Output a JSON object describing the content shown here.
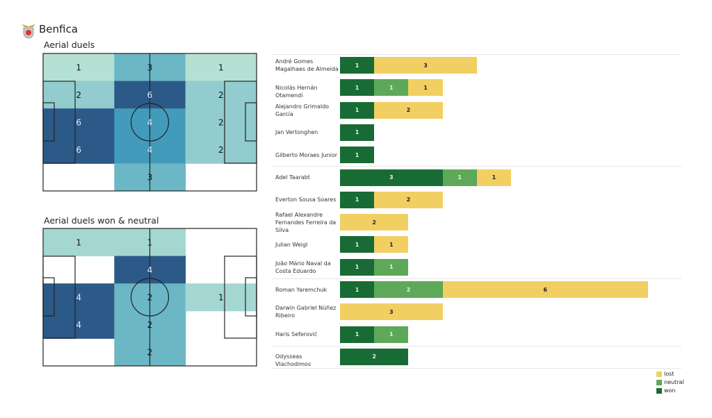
{
  "team": "Benfica",
  "chart_data": [
    {
      "type": "heatmap",
      "title": "Aerial duels",
      "grid": [
        [
          1,
          3,
          1
        ],
        [
          2,
          6,
          2
        ],
        [
          6,
          4,
          2
        ],
        [
          6,
          4,
          2
        ],
        [
          0,
          3,
          0
        ]
      ]
    },
    {
      "type": "heatmap",
      "title": "Aerial duels won & neutral",
      "grid": [
        [
          1,
          1,
          0
        ],
        [
          0,
          4,
          0
        ],
        [
          4,
          2,
          1
        ],
        [
          4,
          2,
          0
        ],
        [
          0,
          2,
          0
        ]
      ]
    },
    {
      "type": "bar",
      "orientation": "horizontal",
      "stacked": true,
      "categories": [
        "André Gomes Magalhaes de Almeida",
        "Nicolás Hernán Otamendi",
        "Alejandro Grimaldo García",
        "Jan Vertonghen",
        "Gilberto Moraes Junior",
        "Adel Taarabt",
        "Everton Sousa Soares",
        "Rafael Alexandre Fernandes Ferreira da Silva",
        "Julian Weigl",
        "João Mário Naval da Costa Eduardo",
        "Roman Yaremchuk",
        "Darwin Gabriel Núñez Ribeiro",
        "Haris Seferović",
        "Odysseas Vlachodimos"
      ],
      "series": [
        {
          "name": "won",
          "color": "#196b35",
          "values": [
            1,
            1,
            1,
            1,
            1,
            3,
            1,
            0,
            1,
            1,
            1,
            0,
            1,
            2
          ]
        },
        {
          "name": "neutral",
          "color": "#5ea85a",
          "values": [
            0,
            1,
            0,
            0,
            0,
            1,
            0,
            0,
            0,
            1,
            2,
            0,
            1,
            0
          ]
        },
        {
          "name": "lost",
          "color": "#f2cf63",
          "values": [
            3,
            1,
            2,
            0,
            0,
            1,
            2,
            2,
            1,
            0,
            6,
            3,
            0,
            0
          ]
        }
      ],
      "group_breaks_after": [
        4,
        9,
        12
      ],
      "legend": [
        "lost",
        "neutral",
        "won"
      ],
      "legend_position": "bottom-right"
    }
  ]
}
